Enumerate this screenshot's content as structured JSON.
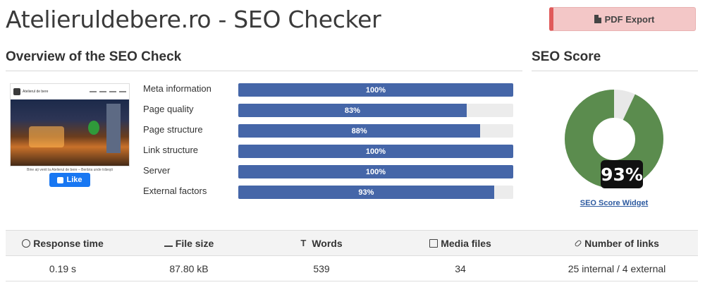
{
  "header": {
    "title": "Atelieruldebere.ro - SEO Checker",
    "pdf_label": "PDF Export"
  },
  "overview": {
    "title": "Overview of the SEO Check",
    "thumbnail": {
      "brand": "Atelierul de bere",
      "caption": "Bine ați venit la Atelierul de bere – Berăria unde trăieşti",
      "like_label": "Like"
    },
    "metrics": [
      {
        "label": "Meta information",
        "value": "100%",
        "fraction": 1.0
      },
      {
        "label": "Page quality",
        "value": "83%",
        "fraction": 0.83
      },
      {
        "label": "Page structure",
        "value": "88%",
        "fraction": 0.88
      },
      {
        "label": "Link structure",
        "value": "100%",
        "fraction": 1.0
      },
      {
        "label": "Server",
        "value": "100%",
        "fraction": 1.0
      },
      {
        "label": "External factors",
        "value": "93%",
        "fraction": 0.93
      }
    ]
  },
  "score": {
    "title": "SEO Score",
    "value": "93%",
    "fraction": 0.93,
    "widget_link": "SEO Score Widget",
    "colors": {
      "good": "#5b8c4e",
      "rest": "#e8e8e8"
    }
  },
  "stats": {
    "headers": [
      {
        "label": "Response time",
        "icon": "clock-icon"
      },
      {
        "label": "File size",
        "icon": "scale-icon"
      },
      {
        "label": "Words",
        "icon": "text-icon"
      },
      {
        "label": "Media files",
        "icon": "image-icon"
      },
      {
        "label": "Number of links",
        "icon": "link-icon"
      }
    ],
    "values": [
      "0.19 s",
      "87.80 kB",
      "539",
      "34",
      "25 internal / 4 external"
    ]
  },
  "colors": {
    "bar_fill": "#4566a8",
    "bar_track": "#ececec",
    "pdf_accent": "#e05a5a"
  }
}
